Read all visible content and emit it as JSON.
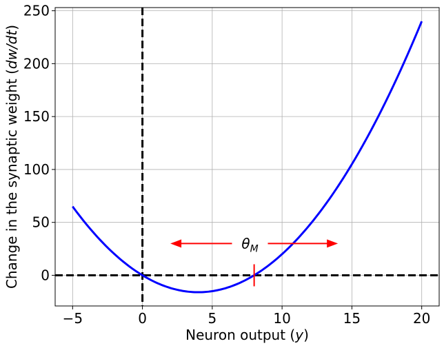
{
  "chart_data": {
    "type": "line",
    "xlabel_text": "Neuron output (",
    "xlabel_var": "y",
    "xlabel_close": ")",
    "ylabel_text": "Change in the synaptic weight (",
    "ylabel_var": "dw/dt",
    "ylabel_close": ")",
    "xlim": [
      -6.25,
      21.25
    ],
    "ylim": [
      -29,
      253
    ],
    "xticks": [
      -5,
      0,
      5,
      10,
      15,
      20
    ],
    "xtick_labels": [
      "−5",
      "0",
      "5",
      "10",
      "15",
      "20"
    ],
    "yticks": [
      0,
      50,
      100,
      150,
      200,
      250
    ],
    "ytick_labels": [
      "0",
      "50",
      "100",
      "150",
      "200",
      "250"
    ],
    "grid": true,
    "series": [
      {
        "function": "y*(y-8)",
        "x_range": [
          -5,
          20
        ],
        "color": "#0000ff"
      }
    ],
    "threshold_x": 8,
    "zero_lines": {
      "x": 0,
      "y": 0,
      "color": "#000000",
      "style": "dashed"
    },
    "annotation": {
      "symbol": "θ",
      "subscript": "M",
      "x": 7.5,
      "y": 30,
      "arrow_left_to": 2,
      "arrow_right_to": 14,
      "color": "#ff0000"
    }
  }
}
